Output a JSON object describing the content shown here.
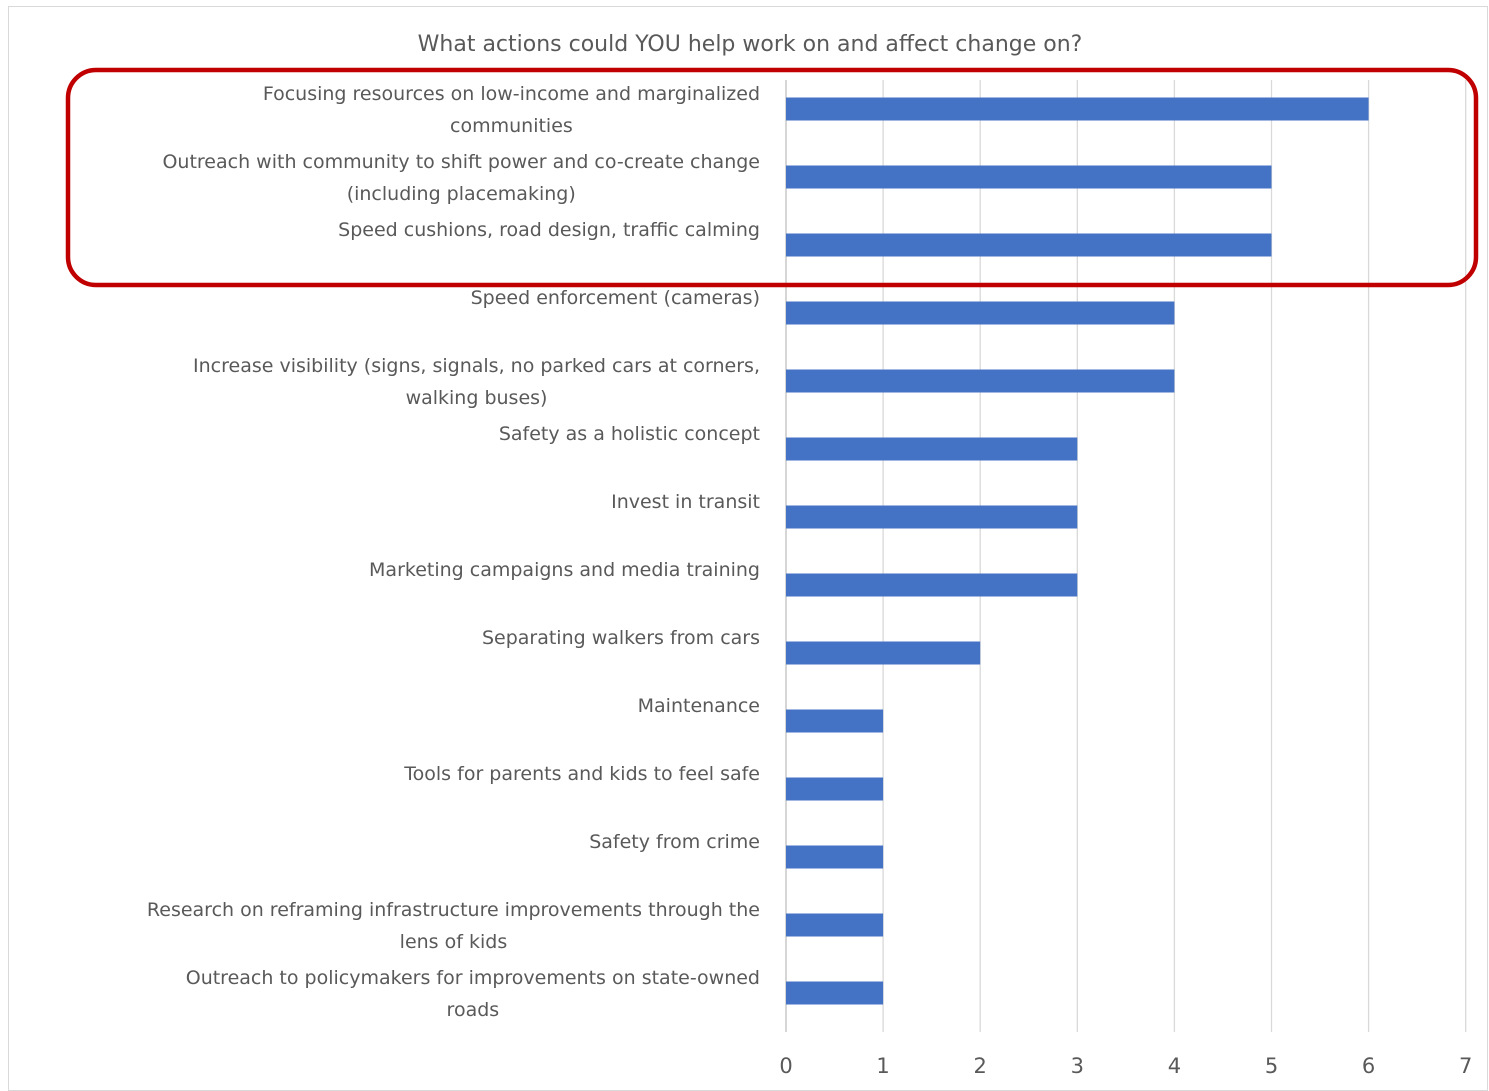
{
  "chart_data": {
    "type": "bar",
    "orientation": "horizontal",
    "title": "What actions could YOU help work on and affect change on?",
    "xlabel": "",
    "ylabel": "",
    "xlim": [
      0,
      7
    ],
    "x_ticks": [
      "0",
      "1",
      "2",
      "3",
      "4",
      "5",
      "6",
      "7"
    ],
    "grid": true,
    "legend": "none",
    "bar_color": "#4472C4",
    "highlight": {
      "color": "#C00000",
      "categories": [
        "Focusing resources on low-income and marginalized communities",
        "Outreach with community to shift power and co-create change (including placemaking)",
        "Speed cushions, road design, traffic calming"
      ]
    },
    "categories": [
      "Focusing resources on low-income and marginalized communities",
      "Outreach with community to shift power and co-create change (including placemaking)",
      "Speed cushions, road design, traffic calming",
      "Speed enforcement (cameras)",
      "Increase visibility (signs, signals, no parked cars at corners, walking buses)",
      "Safety as a holistic concept",
      "Invest in transit",
      "Marketing campaigns and media training",
      "Separating walkers from cars",
      "Maintenance",
      "Tools for parents and kids to feel safe",
      "Safety from crime",
      "Research on reframing infrastructure improvements through the lens of kids",
      "Outreach to policymakers for improvements on state-owned roads"
    ],
    "category_lines": [
      [
        "Focusing resources on low-income and marginalized",
        "communities"
      ],
      [
        "Outreach with community to shift power and co-create change",
        "(including placemaking)"
      ],
      [
        "Speed cushions, road design, traffic calming"
      ],
      [
        "Speed enforcement (cameras)"
      ],
      [
        "Increase visibility (signs, signals, no parked cars at corners,",
        "walking buses)"
      ],
      [
        "Safety as a holistic concept"
      ],
      [
        "Invest in transit"
      ],
      [
        "Marketing campaigns and media training"
      ],
      [
        "Separating walkers from cars"
      ],
      [
        "Maintenance"
      ],
      [
        "Tools for parents and kids to feel safe"
      ],
      [
        "Safety from crime"
      ],
      [
        "Research on reframing infrastructure improvements through the",
        "lens of kids"
      ],
      [
        "Outreach to policymakers for improvements on state-owned",
        "roads"
      ]
    ],
    "values": [
      6,
      5,
      5,
      4,
      4,
      3,
      3,
      3,
      2,
      1,
      1,
      1,
      1,
      1
    ]
  }
}
